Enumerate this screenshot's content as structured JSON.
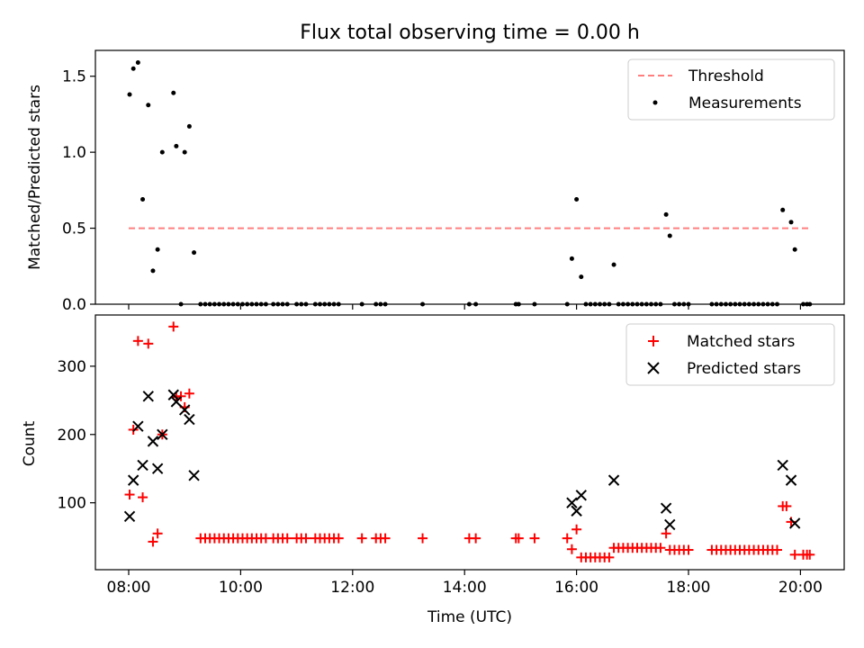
{
  "chart_data": {
    "type": "scatter",
    "title": "Flux total observing time = 0.00 h",
    "x_tick_labels": [
      "08:00",
      "10:00",
      "12:00",
      "14:00",
      "16:00",
      "18:00",
      "20:00"
    ],
    "xlabel": "Time (UTC)",
    "panels": [
      {
        "ylabel": "Matched/Predicted stars",
        "ylim": [
          0,
          1.67
        ],
        "y_ticks": [
          0.0,
          0.5,
          1.0,
          1.5
        ],
        "y_tick_labels": [
          "0.0",
          "0.5",
          "1.0",
          "1.5"
        ],
        "legend_position": "top-right",
        "threshold": {
          "name": "Threshold",
          "value": 0.5,
          "x_start": "08:00",
          "x_end": "20:10",
          "color": "#ff7f7f",
          "style": "dashed"
        },
        "series": [
          {
            "name": "Measurements",
            "color": "#000000",
            "marker": "dot",
            "points": [
              [
                "08:01",
                1.38
              ],
              [
                "08:05",
                1.55
              ],
              [
                "08:10",
                1.59
              ],
              [
                "08:15",
                0.69
              ],
              [
                "08:21",
                1.31
              ],
              [
                "08:26",
                0.22
              ],
              [
                "08:31",
                0.36
              ],
              [
                "08:36",
                1.0
              ],
              [
                "08:48",
                1.39
              ],
              [
                "08:51",
                1.04
              ],
              [
                "08:56",
                0.0
              ],
              [
                "09:00",
                1.0
              ],
              [
                "09:05",
                1.17
              ],
              [
                "09:10",
                0.34
              ],
              [
                "09:17",
                0.0
              ],
              [
                "09:22",
                0.0
              ],
              [
                "09:27",
                0.0
              ],
              [
                "09:32",
                0.0
              ],
              [
                "09:37",
                0.0
              ],
              [
                "09:42",
                0.0
              ],
              [
                "09:47",
                0.0
              ],
              [
                "09:52",
                0.0
              ],
              [
                "09:57",
                0.0
              ],
              [
                "10:02",
                0.0
              ],
              [
                "10:07",
                0.0
              ],
              [
                "10:12",
                0.0
              ],
              [
                "10:17",
                0.0
              ],
              [
                "10:22",
                0.0
              ],
              [
                "10:27",
                0.0
              ],
              [
                "10:35",
                0.0
              ],
              [
                "10:40",
                0.0
              ],
              [
                "10:45",
                0.0
              ],
              [
                "10:50",
                0.0
              ],
              [
                "11:00",
                0.0
              ],
              [
                "11:05",
                0.0
              ],
              [
                "11:10",
                0.0
              ],
              [
                "11:20",
                0.0
              ],
              [
                "11:25",
                0.0
              ],
              [
                "11:30",
                0.0
              ],
              [
                "11:35",
                0.0
              ],
              [
                "11:40",
                0.0
              ],
              [
                "11:45",
                0.0
              ],
              [
                "12:10",
                0.0
              ],
              [
                "12:25",
                0.0
              ],
              [
                "12:30",
                0.0
              ],
              [
                "12:35",
                0.0
              ],
              [
                "13:15",
                0.0
              ],
              [
                "14:05",
                0.0
              ],
              [
                "14:12",
                0.0
              ],
              [
                "14:55",
                0.0
              ],
              [
                "14:58",
                0.0
              ],
              [
                "15:15",
                0.0
              ],
              [
                "15:50",
                0.0
              ],
              [
                "15:55",
                0.3
              ],
              [
                "16:00",
                0.69
              ],
              [
                "16:05",
                0.18
              ],
              [
                "16:10",
                0.0
              ],
              [
                "16:15",
                0.0
              ],
              [
                "16:20",
                0.0
              ],
              [
                "16:25",
                0.0
              ],
              [
                "16:30",
                0.0
              ],
              [
                "16:35",
                0.0
              ],
              [
                "16:40",
                0.26
              ],
              [
                "16:45",
                0.0
              ],
              [
                "16:50",
                0.0
              ],
              [
                "16:55",
                0.0
              ],
              [
                "17:00",
                0.0
              ],
              [
                "17:05",
                0.0
              ],
              [
                "17:10",
                0.0
              ],
              [
                "17:15",
                0.0
              ],
              [
                "17:20",
                0.0
              ],
              [
                "17:25",
                0.0
              ],
              [
                "17:30",
                0.0
              ],
              [
                "17:36",
                0.59
              ],
              [
                "17:40",
                0.45
              ],
              [
                "17:45",
                0.0
              ],
              [
                "17:50",
                0.0
              ],
              [
                "17:55",
                0.0
              ],
              [
                "18:00",
                0.0
              ],
              [
                "18:25",
                0.0
              ],
              [
                "18:30",
                0.0
              ],
              [
                "18:35",
                0.0
              ],
              [
                "18:40",
                0.0
              ],
              [
                "18:45",
                0.0
              ],
              [
                "18:50",
                0.0
              ],
              [
                "18:55",
                0.0
              ],
              [
                "19:00",
                0.0
              ],
              [
                "19:05",
                0.0
              ],
              [
                "19:10",
                0.0
              ],
              [
                "19:15",
                0.0
              ],
              [
                "19:20",
                0.0
              ],
              [
                "19:25",
                0.0
              ],
              [
                "19:30",
                0.0
              ],
              [
                "19:35",
                0.0
              ],
              [
                "19:41",
                0.62
              ],
              [
                "19:50",
                0.54
              ],
              [
                "19:54",
                0.36
              ],
              [
                "20:03",
                0.0
              ],
              [
                "20:07",
                0.0
              ],
              [
                "20:10",
                0.0
              ]
            ]
          }
        ]
      },
      {
        "ylabel": "Count",
        "ylim": [
          2,
          375
        ],
        "y_ticks": [
          100,
          200,
          300
        ],
        "y_tick_labels": [
          "100",
          "200",
          "300"
        ],
        "legend_position": "top-right",
        "series": [
          {
            "name": "Matched stars",
            "color": "#ff0000",
            "marker": "plus",
            "points": [
              [
                "08:01",
                112
              ],
              [
                "08:05",
                207
              ],
              [
                "08:10",
                337
              ],
              [
                "08:15",
                108
              ],
              [
                "08:21",
                333
              ],
              [
                "08:26",
                43
              ],
              [
                "08:31",
                55
              ],
              [
                "08:36",
                200
              ],
              [
                "08:48",
                358
              ],
              [
                "08:51",
                255
              ],
              [
                "08:56",
                256
              ],
              [
                "09:00",
                240
              ],
              [
                "09:05",
                260
              ],
              [
                "09:17",
                48
              ],
              [
                "09:22",
                48
              ],
              [
                "09:27",
                48
              ],
              [
                "09:32",
                48
              ],
              [
                "09:37",
                48
              ],
              [
                "09:42",
                48
              ],
              [
                "09:47",
                48
              ],
              [
                "09:52",
                48
              ],
              [
                "09:57",
                48
              ],
              [
                "10:02",
                48
              ],
              [
                "10:07",
                48
              ],
              [
                "10:12",
                48
              ],
              [
                "10:17",
                48
              ],
              [
                "10:22",
                48
              ],
              [
                "10:27",
                48
              ],
              [
                "10:35",
                48
              ],
              [
                "10:40",
                48
              ],
              [
                "10:45",
                48
              ],
              [
                "10:50",
                48
              ],
              [
                "11:00",
                48
              ],
              [
                "11:05",
                48
              ],
              [
                "11:10",
                48
              ],
              [
                "11:20",
                48
              ],
              [
                "11:25",
                48
              ],
              [
                "11:30",
                48
              ],
              [
                "11:35",
                48
              ],
              [
                "11:40",
                48
              ],
              [
                "11:45",
                48
              ],
              [
                "12:10",
                48
              ],
              [
                "12:25",
                48
              ],
              [
                "12:30",
                48
              ],
              [
                "12:35",
                48
              ],
              [
                "13:15",
                48
              ],
              [
                "14:05",
                48
              ],
              [
                "14:12",
                48
              ],
              [
                "14:55",
                48
              ],
              [
                "14:58",
                48
              ],
              [
                "15:15",
                48
              ],
              [
                "15:50",
                48
              ],
              [
                "15:55",
                32
              ],
              [
                "16:00",
                61
              ],
              [
                "16:05",
                20
              ],
              [
                "16:10",
                20
              ],
              [
                "16:15",
                20
              ],
              [
                "16:20",
                20
              ],
              [
                "16:25",
                20
              ],
              [
                "16:30",
                20
              ],
              [
                "16:35",
                20
              ],
              [
                "16:40",
                34
              ],
              [
                "16:45",
                34
              ],
              [
                "16:50",
                34
              ],
              [
                "16:55",
                34
              ],
              [
                "17:00",
                34
              ],
              [
                "17:05",
                34
              ],
              [
                "17:10",
                34
              ],
              [
                "17:15",
                34
              ],
              [
                "17:20",
                34
              ],
              [
                "17:25",
                34
              ],
              [
                "17:30",
                34
              ],
              [
                "17:36",
                55
              ],
              [
                "17:40",
                31
              ],
              [
                "17:45",
                31
              ],
              [
                "17:50",
                31
              ],
              [
                "17:55",
                31
              ],
              [
                "18:00",
                31
              ],
              [
                "18:25",
                31
              ],
              [
                "18:30",
                31
              ],
              [
                "18:35",
                31
              ],
              [
                "18:40",
                31
              ],
              [
                "18:45",
                31
              ],
              [
                "18:50",
                31
              ],
              [
                "18:55",
                31
              ],
              [
                "19:00",
                31
              ],
              [
                "19:05",
                31
              ],
              [
                "19:10",
                31
              ],
              [
                "19:15",
                31
              ],
              [
                "19:20",
                31
              ],
              [
                "19:25",
                31
              ],
              [
                "19:30",
                31
              ],
              [
                "19:35",
                31
              ],
              [
                "19:41",
                95
              ],
              [
                "19:45",
                95
              ],
              [
                "19:50",
                72
              ],
              [
                "19:54",
                24
              ],
              [
                "20:03",
                24
              ],
              [
                "20:07",
                24
              ],
              [
                "20:10",
                24
              ]
            ]
          },
          {
            "name": "Predicted stars",
            "color": "#000000",
            "marker": "x",
            "points": [
              [
                "08:01",
                80
              ],
              [
                "08:05",
                133
              ],
              [
                "08:10",
                212
              ],
              [
                "08:15",
                155
              ],
              [
                "08:21",
                256
              ],
              [
                "08:26",
                190
              ],
              [
                "08:31",
                150
              ],
              [
                "08:36",
                200
              ],
              [
                "08:48",
                258
              ],
              [
                "08:51",
                248
              ],
              [
                "09:00",
                236
              ],
              [
                "09:05",
                222
              ],
              [
                "09:10",
                140
              ],
              [
                "15:55",
                100
              ],
              [
                "16:00",
                88
              ],
              [
                "16:05",
                111
              ],
              [
                "16:40",
                133
              ],
              [
                "17:36",
                92
              ],
              [
                "17:40",
                68
              ],
              [
                "19:41",
                155
              ],
              [
                "19:50",
                133
              ],
              [
                "19:54",
                70
              ]
            ]
          }
        ]
      }
    ]
  }
}
